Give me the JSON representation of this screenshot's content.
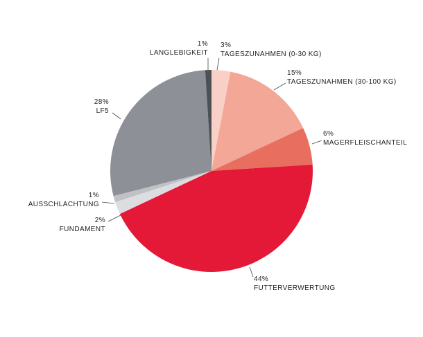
{
  "chart_data": {
    "type": "pie",
    "categories": [
      "TAGESZUNAHMEN (0-30 KG)",
      "TAGESZUNAHMEN (30-100 KG)",
      "MAGERFLEISCHANTEIL",
      "FUTTERVERWERTUNG",
      "FUNDAMENT",
      "AUSSCHLACHTUNG",
      "LF5",
      "LANGLEBIGKEIT"
    ],
    "values": [
      3,
      15,
      6,
      44,
      2,
      1,
      28,
      1
    ],
    "value_labels": [
      "3%",
      "15%",
      "6%",
      "44%",
      "2%",
      "1%",
      "28%",
      "1%"
    ],
    "colors": [
      "#f9d0c7",
      "#f2a797",
      "#e86f5f",
      "#e31937",
      "#dcdde0",
      "#bfc1c5",
      "#8d9197",
      "#4d5156"
    ]
  }
}
